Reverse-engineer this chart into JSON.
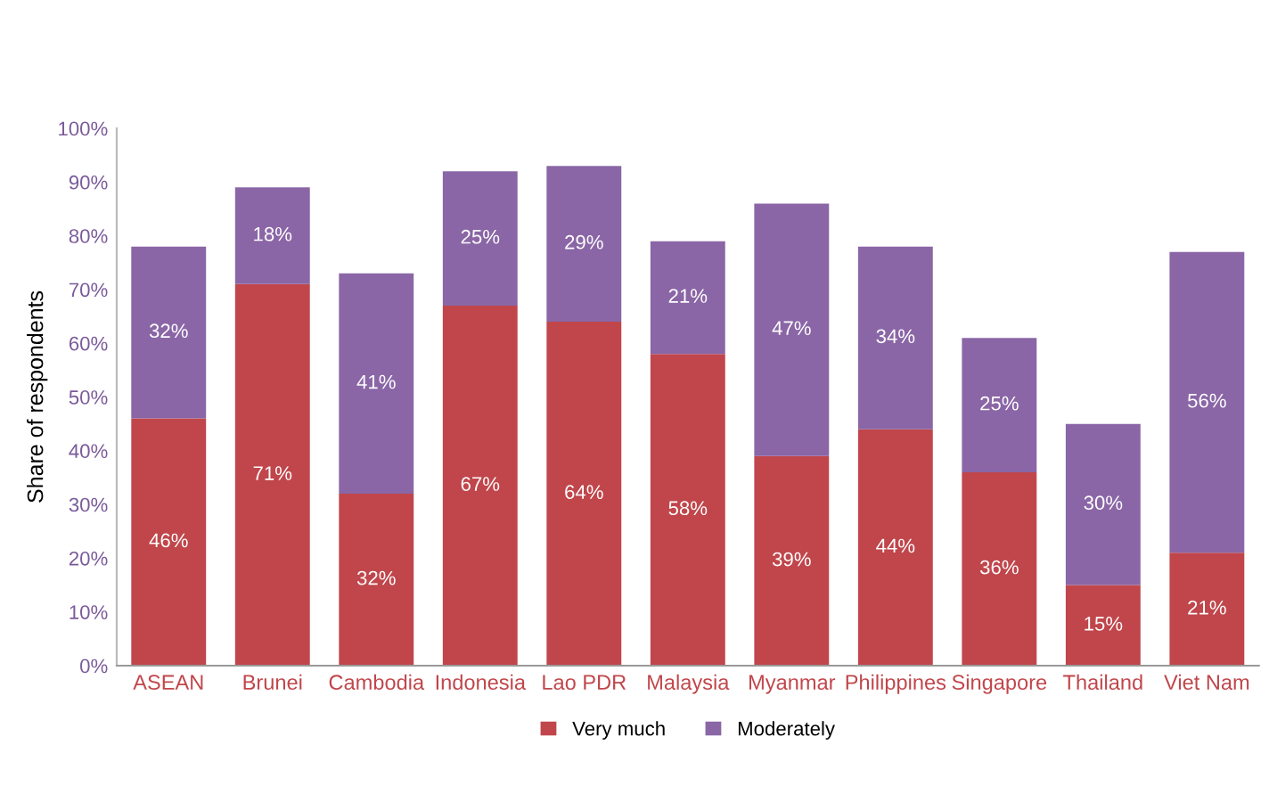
{
  "chart_data": {
    "type": "bar",
    "stacked": true,
    "ylabel": "Share of respondents",
    "categories": [
      "ASEAN",
      "Brunei",
      "Cambodia",
      "Indonesia",
      "Lao PDR",
      "Malaysia",
      "Myanmar",
      "Philippines",
      "Singapore",
      "Thailand",
      "Viet Nam"
    ],
    "series": [
      {
        "name": "Very much",
        "color": "#c0464b",
        "values": [
          46,
          71,
          32,
          67,
          64,
          58,
          39,
          44,
          36,
          15,
          21
        ],
        "value_labels": [
          "46%",
          "71%",
          "32%",
          "67%",
          "64%",
          "58%",
          "39%",
          "44%",
          "36%",
          "15%",
          "21%"
        ]
      },
      {
        "name": "Moderately",
        "color": "#8a66a6",
        "values": [
          32,
          18,
          41,
          25,
          29,
          21,
          47,
          34,
          25,
          30,
          56
        ],
        "value_labels": [
          "32%",
          "18%",
          "41%",
          "25%",
          "29%",
          "21%",
          "47%",
          "34%",
          "25%",
          "30%",
          "56%"
        ]
      }
    ],
    "ylim": [
      0,
      100
    ],
    "yticks": [
      {
        "value": 0,
        "label": "0%"
      },
      {
        "value": 10,
        "label": "10%"
      },
      {
        "value": 20,
        "label": "20%"
      },
      {
        "value": 30,
        "label": "30%"
      },
      {
        "value": 40,
        "label": "40%"
      },
      {
        "value": 50,
        "label": "50%"
      },
      {
        "value": 60,
        "label": "60%"
      },
      {
        "value": 70,
        "label": "70%"
      },
      {
        "value": 80,
        "label": "80%"
      },
      {
        "value": 90,
        "label": "90%"
      },
      {
        "value": 100,
        "label": "100%"
      }
    ],
    "grid": false,
    "legend": "bottom"
  }
}
